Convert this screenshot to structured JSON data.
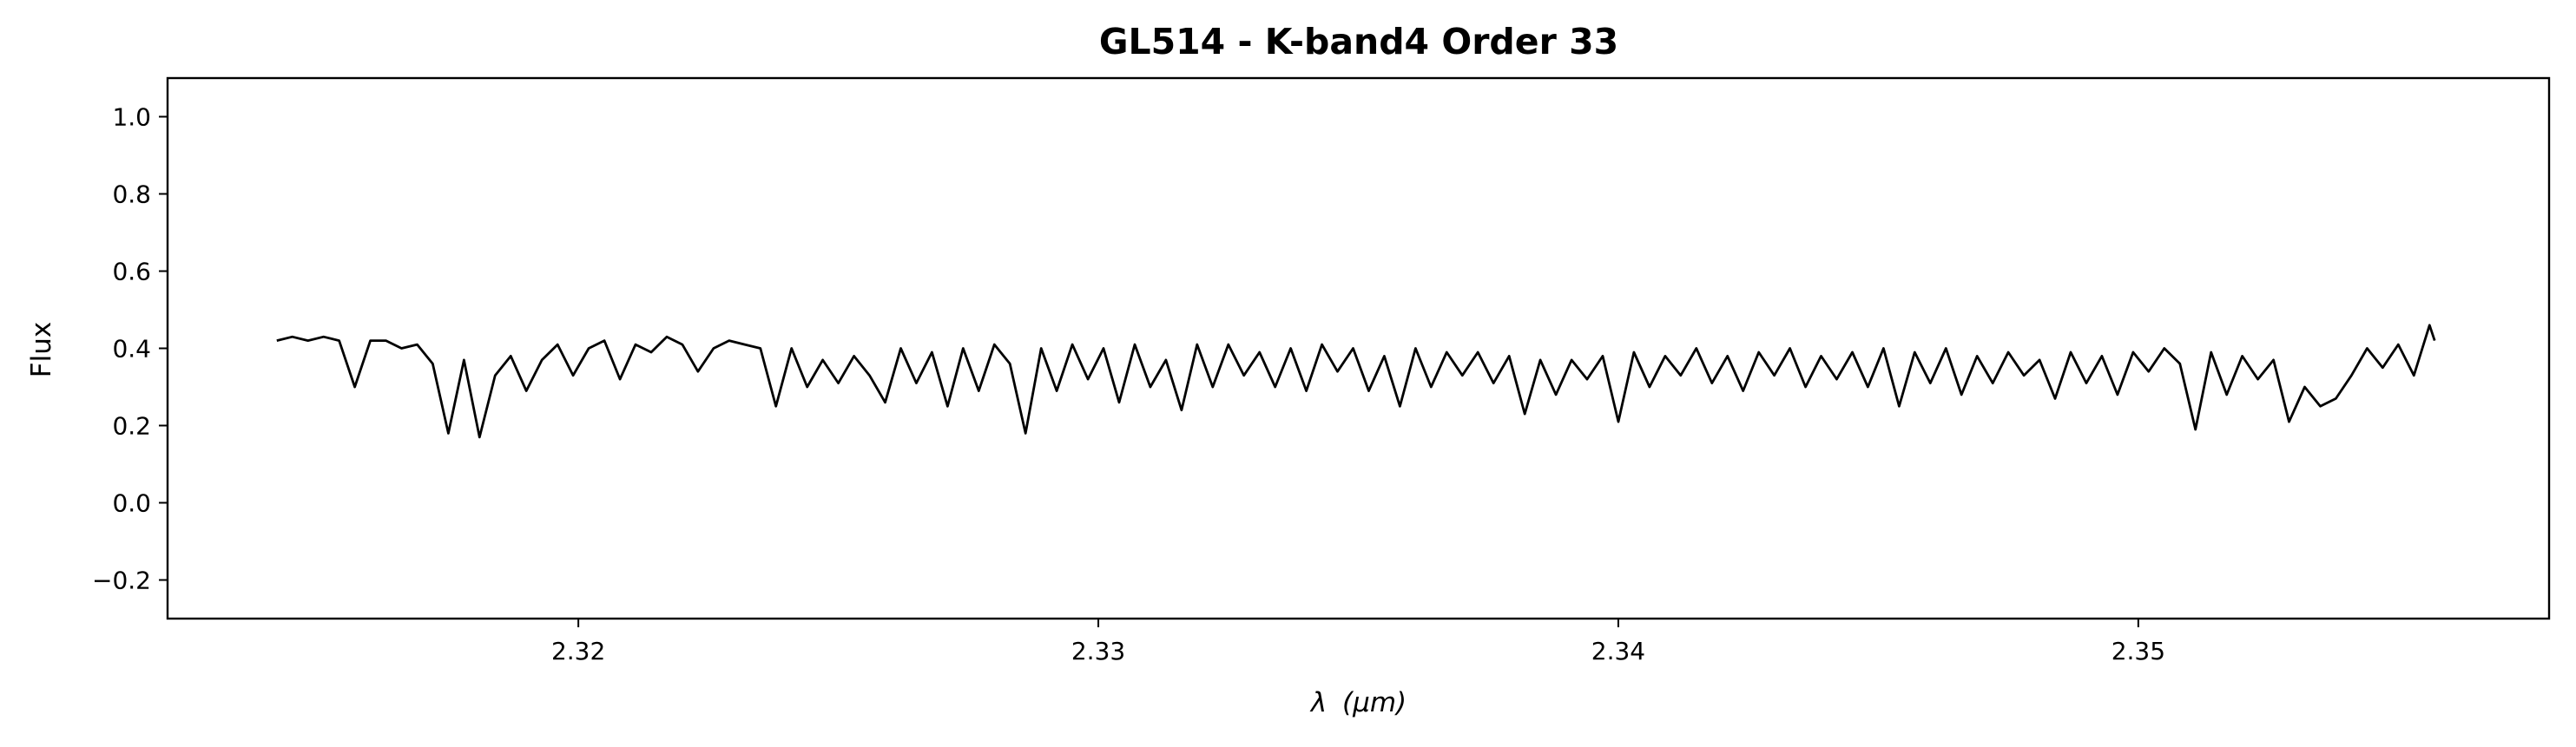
{
  "chart_data": {
    "type": "line",
    "title": "GL514 - K-band4 Order 33",
    "xlabel_symbol": "λ",
    "xlabel_unit": "(μm)",
    "ylabel": "Flux",
    "xlim": [
      2.3121,
      2.3579
    ],
    "ylim": [
      -0.3,
      1.1
    ],
    "xticks": [
      2.32,
      2.33,
      2.34,
      2.35
    ],
    "xtick_labels": [
      "2.32",
      "2.33",
      "2.34",
      "2.35"
    ],
    "yticks": [
      -0.2,
      0.0,
      0.2,
      0.4,
      0.6,
      0.8,
      1.0
    ],
    "ytick_labels": [
      "−0.2",
      "0.0",
      "0.2",
      "0.4",
      "0.6",
      "0.8",
      "1.0"
    ],
    "grid": false,
    "line_color": "#000000",
    "series": [
      {
        "x": [
          2.3142,
          2.3145,
          2.3148,
          2.3151,
          2.3154,
          2.3157,
          2.316,
          2.3163,
          2.3166,
          2.3169,
          2.3172,
          2.3175,
          2.3178,
          2.3181,
          2.3184,
          2.3187,
          2.319,
          2.3193,
          2.3196,
          2.3199,
          2.3202,
          2.3205,
          2.3208,
          2.3211,
          2.3214,
          2.3217,
          2.322,
          2.3223,
          2.3226,
          2.3229,
          2.3232,
          2.3235,
          2.3238,
          2.3241,
          2.3244,
          2.3247,
          2.325,
          2.3253,
          2.3256,
          2.3259,
          2.3262,
          2.3265,
          2.3268,
          2.3271,
          2.3274,
          2.3277,
          2.328,
          2.3283,
          2.3286,
          2.3289,
          2.3292,
          2.3295,
          2.3298,
          2.3301,
          2.3304,
          2.3307,
          2.331,
          2.3313,
          2.3316,
          2.3319,
          2.3322,
          2.3325,
          2.3328,
          2.3331,
          2.3334,
          2.3337,
          2.334,
          2.3343,
          2.3346,
          2.3349,
          2.3352,
          2.3355,
          2.3358,
          2.3361,
          2.3364,
          2.3367,
          2.337,
          2.3373,
          2.3376,
          2.3379,
          2.3382,
          2.3385,
          2.3388,
          2.3391,
          2.3394,
          2.3397,
          2.34,
          2.3403,
          2.3406,
          2.3409,
          2.3412,
          2.3415,
          2.3418,
          2.3421,
          2.3424,
          2.3427,
          2.343,
          2.3433,
          2.3436,
          2.3439,
          2.3442,
          2.3445,
          2.3448,
          2.3451,
          2.3454,
          2.3457,
          2.346,
          2.3463,
          2.3466,
          2.3469,
          2.3472,
          2.3475,
          2.3478,
          2.3481,
          2.3484,
          2.3487,
          2.349,
          2.3493,
          2.3496,
          2.3499,
          2.3502,
          2.3505,
          2.3508,
          2.3511,
          2.3514,
          2.3517,
          2.352,
          2.3523,
          2.3526,
          2.3529,
          2.3532,
          2.3535,
          2.3538,
          2.3541,
          2.3544,
          2.3547,
          2.355,
          2.3553,
          2.3556,
          2.3557
        ],
        "y": [
          0.42,
          0.43,
          0.42,
          0.43,
          0.42,
          0.3,
          0.42,
          0.42,
          0.4,
          0.41,
          0.36,
          0.18,
          0.37,
          0.17,
          0.33,
          0.38,
          0.29,
          0.37,
          0.41,
          0.33,
          0.4,
          0.42,
          0.32,
          0.41,
          0.39,
          0.43,
          0.41,
          0.34,
          0.4,
          0.42,
          0.41,
          0.4,
          0.25,
          0.4,
          0.3,
          0.37,
          0.31,
          0.38,
          0.33,
          0.26,
          0.4,
          0.31,
          0.39,
          0.25,
          0.4,
          0.29,
          0.41,
          0.36,
          0.18,
          0.4,
          0.29,
          0.41,
          0.32,
          0.4,
          0.26,
          0.41,
          0.3,
          0.37,
          0.24,
          0.41,
          0.3,
          0.41,
          0.33,
          0.39,
          0.3,
          0.4,
          0.29,
          0.41,
          0.34,
          0.4,
          0.29,
          0.38,
          0.25,
          0.4,
          0.3,
          0.39,
          0.33,
          0.39,
          0.31,
          0.38,
          0.23,
          0.37,
          0.28,
          0.37,
          0.32,
          0.38,
          0.21,
          0.39,
          0.3,
          0.38,
          0.33,
          0.4,
          0.31,
          0.38,
          0.29,
          0.39,
          0.33,
          0.4,
          0.3,
          0.38,
          0.32,
          0.39,
          0.3,
          0.4,
          0.25,
          0.39,
          0.31,
          0.4,
          0.28,
          0.38,
          0.31,
          0.39,
          0.33,
          0.37,
          0.27,
          0.39,
          0.31,
          0.38,
          0.28,
          0.39,
          0.34,
          0.4,
          0.36,
          0.19,
          0.39,
          0.28,
          0.38,
          0.32,
          0.37,
          0.21,
          0.3,
          0.25,
          0.27,
          0.33,
          0.4,
          0.35,
          0.41,
          0.33,
          0.46,
          0.42
        ]
      }
    ]
  }
}
